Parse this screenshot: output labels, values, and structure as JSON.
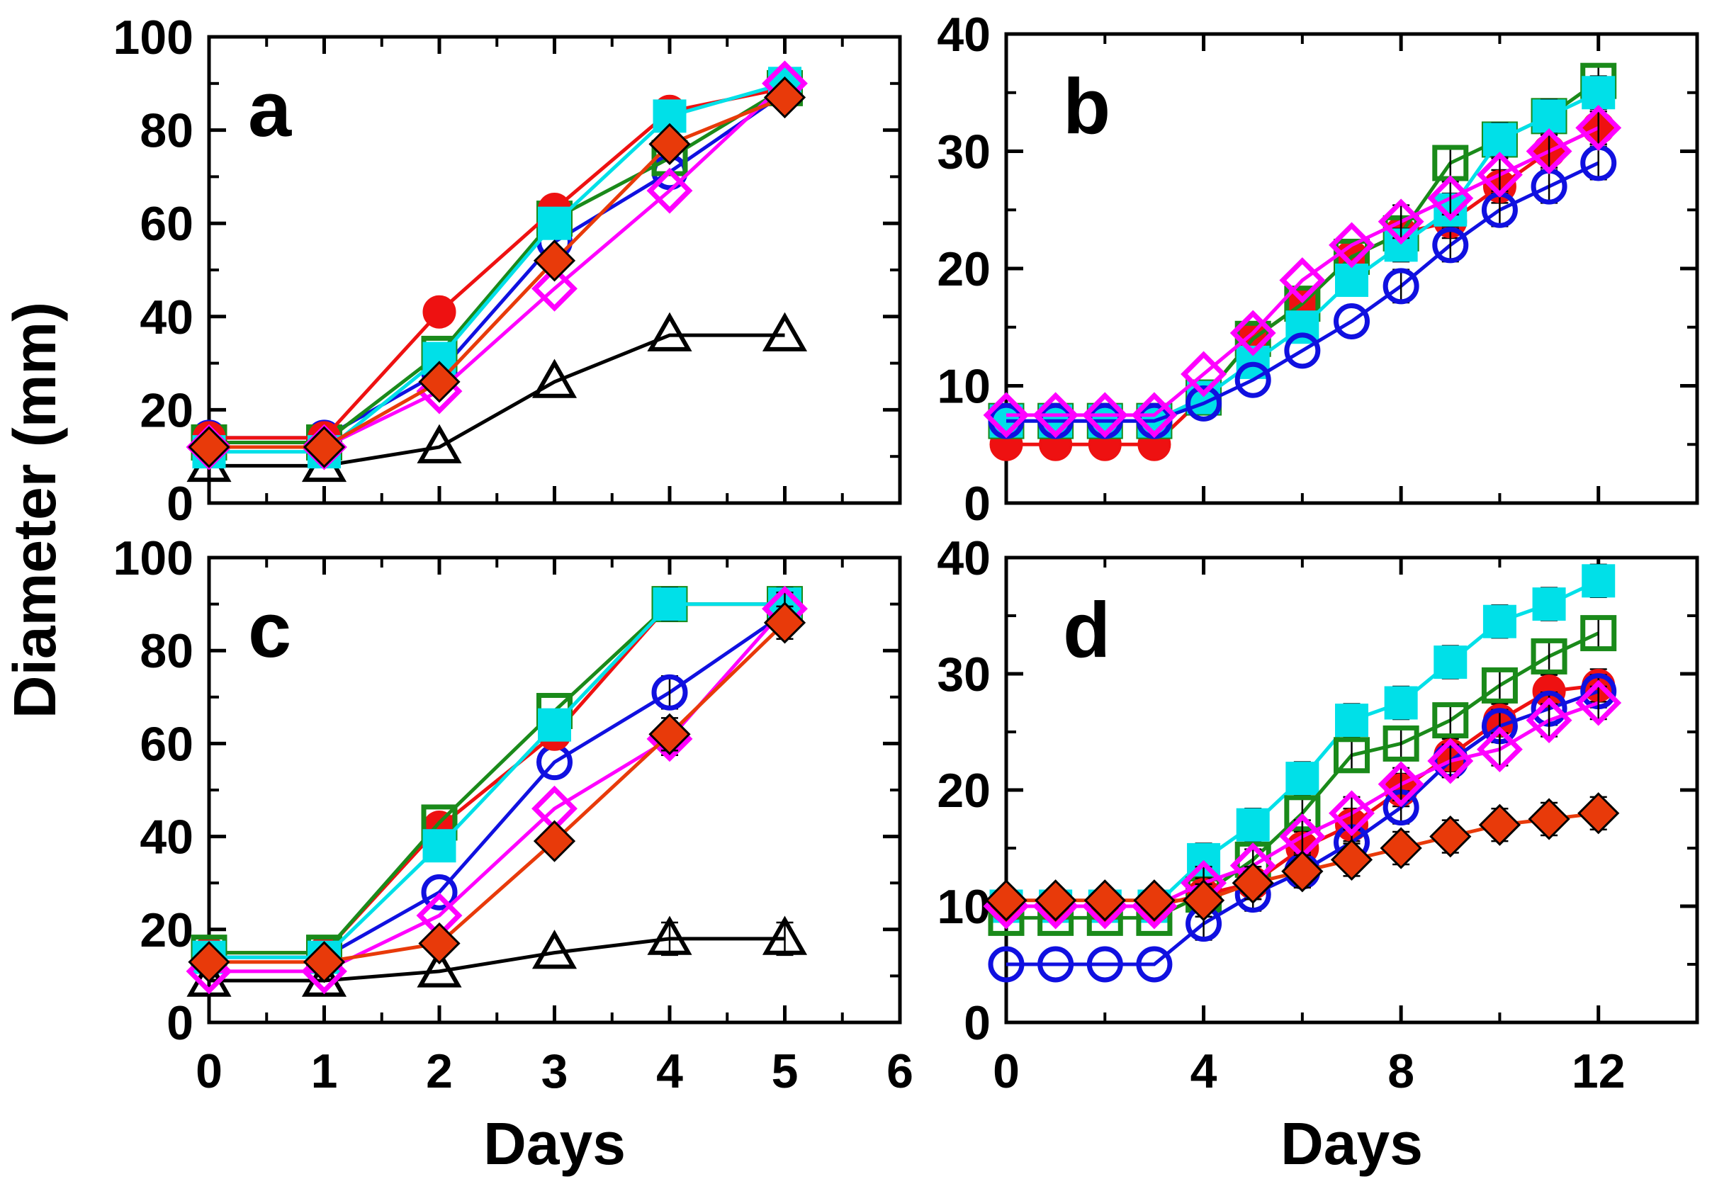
{
  "figure": {
    "ylabel": "Diameter (mm)",
    "xlabel": "Days"
  },
  "colors": {
    "blue": "#1010e0",
    "red": "#ee1111",
    "green": "#1a8a1a",
    "cyan": "#00e0e8",
    "magenta": "#ff00ff",
    "orange": "#e83a0a",
    "black": "#000000"
  },
  "chart_data": [
    {
      "id": "a",
      "type": "line",
      "panel_label": "a",
      "xlim": [
        0,
        6
      ],
      "ylim": [
        0,
        100
      ],
      "xticks": [
        "0",
        "1",
        "2",
        "3",
        "4",
        "5",
        "6"
      ],
      "yticks": [
        "0",
        "20",
        "40",
        "60",
        "80",
        "100"
      ],
      "show_xticks": false,
      "xlabel": "",
      "ylabel": "Diameter (mm)",
      "series": [
        {
          "name": "black-triangle",
          "color": "#000000",
          "marker": "triangle-open",
          "x": [
            0,
            1,
            2,
            3,
            4,
            5
          ],
          "y": [
            8,
            8,
            12,
            26,
            36,
            36
          ]
        },
        {
          "name": "blue-circle",
          "color": "#1010e0",
          "marker": "circle-open",
          "x": [
            0,
            1,
            2,
            3,
            4,
            5
          ],
          "y": [
            14,
            14,
            28,
            56,
            71,
            88
          ]
        },
        {
          "name": "green-square",
          "color": "#1a8a1a",
          "marker": "square-open",
          "x": [
            0,
            1,
            2,
            3,
            4,
            5
          ],
          "y": [
            13,
            13,
            32,
            61,
            74,
            89
          ]
        },
        {
          "name": "red-circle",
          "color": "#ee1111",
          "marker": "circle-filled",
          "x": [
            0,
            1,
            2,
            3,
            4,
            5
          ],
          "y": [
            14,
            14,
            41,
            63,
            84,
            89
          ]
        },
        {
          "name": "cyan-square",
          "color": "#00e0e8",
          "marker": "square-filled",
          "x": [
            0,
            1,
            2,
            3,
            4,
            5
          ],
          "y": [
            11,
            11,
            31,
            60,
            83,
            90
          ]
        },
        {
          "name": "magenta-diamond",
          "color": "#ff00ff",
          "marker": "diamond-open",
          "x": [
            0,
            1,
            2,
            3,
            4,
            5
          ],
          "y": [
            12,
            12,
            24,
            46,
            67,
            90
          ]
        },
        {
          "name": "orange-diamond",
          "color": "#e83a0a",
          "marker": "diamond-filled",
          "x": [
            0,
            1,
            2,
            3,
            4,
            5
          ],
          "y": [
            12,
            12,
            26,
            52,
            77,
            87
          ]
        }
      ]
    },
    {
      "id": "b",
      "type": "line",
      "panel_label": "b",
      "xlim": [
        0,
        14
      ],
      "ylim": [
        0,
        40
      ],
      "xticks": [
        "0",
        "4",
        "8",
        "12"
      ],
      "yticks": [
        "0",
        "10",
        "20",
        "30",
        "40"
      ],
      "show_xticks": false,
      "xlabel": "",
      "ylabel": "",
      "series": [
        {
          "name": "red-circle",
          "color": "#ee1111",
          "marker": "circle-filled",
          "x": [
            0,
            1,
            2,
            3,
            4,
            5,
            6,
            7,
            8,
            9,
            10,
            11,
            12
          ],
          "y": [
            5,
            5,
            5,
            5,
            9,
            14,
            17,
            21,
            23,
            24,
            27,
            30,
            32
          ]
        },
        {
          "name": "green-square",
          "color": "#1a8a1a",
          "marker": "square-open",
          "x": [
            0,
            1,
            2,
            3,
            4,
            5,
            6,
            7,
            8,
            9,
            10,
            11,
            12
          ],
          "y": [
            7,
            7,
            7,
            7,
            9,
            14,
            17,
            21,
            23,
            29,
            31,
            33,
            36
          ]
        },
        {
          "name": "cyan-square",
          "color": "#00e0e8",
          "marker": "square-filled",
          "x": [
            0,
            1,
            2,
            3,
            4,
            5,
            6,
            7,
            8,
            9,
            10,
            11,
            12
          ],
          "y": [
            7,
            7,
            7,
            7,
            9,
            12,
            15,
            19,
            22,
            25,
            31,
            33,
            35
          ]
        },
        {
          "name": "blue-circle",
          "color": "#1010e0",
          "marker": "circle-open",
          "x": [
            0,
            1,
            2,
            3,
            4,
            5,
            6,
            7,
            8,
            9,
            10,
            11,
            12
          ],
          "y": [
            7,
            7,
            7,
            7,
            8.5,
            10.5,
            13,
            15.5,
            18.5,
            22,
            25,
            27,
            29
          ]
        },
        {
          "name": "magenta-diamond",
          "color": "#ff00ff",
          "marker": "diamond-open",
          "x": [
            0,
            1,
            2,
            3,
            4,
            5,
            6,
            7,
            8,
            9,
            10,
            11,
            12
          ],
          "y": [
            7.5,
            7.5,
            7.5,
            7.5,
            11,
            14.5,
            19,
            22,
            24,
            26,
            28,
            30,
            32
          ]
        }
      ]
    },
    {
      "id": "c",
      "type": "line",
      "panel_label": "c",
      "xlim": [
        0,
        6
      ],
      "ylim": [
        0,
        100
      ],
      "xticks": [
        "0",
        "1",
        "2",
        "3",
        "4",
        "5",
        "6"
      ],
      "yticks": [
        "0",
        "20",
        "40",
        "60",
        "80",
        "100"
      ],
      "show_xticks": true,
      "xlabel": "Days",
      "ylabel": "",
      "series": [
        {
          "name": "black-triangle",
          "color": "#000000",
          "marker": "triangle-open",
          "x": [
            0,
            1,
            2,
            3,
            4,
            5
          ],
          "y": [
            9,
            9,
            11,
            15,
            18,
            18
          ]
        },
        {
          "name": "blue-circle",
          "color": "#1010e0",
          "marker": "circle-open",
          "x": [
            0,
            1,
            2,
            3,
            4,
            5
          ],
          "y": [
            14,
            14,
            28,
            56,
            71,
            88
          ]
        },
        {
          "name": "red-circle",
          "color": "#ee1111",
          "marker": "circle-filled",
          "x": [
            0,
            1,
            2,
            3,
            4,
            5
          ],
          "y": [
            15,
            15,
            42,
            62,
            90,
            90
          ]
        },
        {
          "name": "green-square",
          "color": "#1a8a1a",
          "marker": "square-open",
          "x": [
            0,
            1,
            2,
            3,
            4,
            5
          ],
          "y": [
            15,
            15,
            43,
            67,
            90,
            90
          ]
        },
        {
          "name": "cyan-square",
          "color": "#00e0e8",
          "marker": "square-filled",
          "x": [
            0,
            1,
            2,
            3,
            4,
            5
          ],
          "y": [
            14,
            14,
            38,
            64,
            90,
            90
          ]
        },
        {
          "name": "magenta-diamond",
          "color": "#ff00ff",
          "marker": "diamond-open",
          "x": [
            0,
            1,
            2,
            3,
            4,
            5
          ],
          "y": [
            11,
            11,
            23,
            46,
            61,
            89
          ]
        },
        {
          "name": "orange-diamond",
          "color": "#e83a0a",
          "marker": "diamond-filled",
          "x": [
            0,
            1,
            2,
            3,
            4,
            5
          ],
          "y": [
            13,
            13,
            17,
            39,
            62,
            86
          ]
        }
      ]
    },
    {
      "id": "d",
      "type": "line",
      "panel_label": "d",
      "xlim": [
        0,
        14
      ],
      "ylim": [
        0,
        40
      ],
      "xticks": [
        "0",
        "4",
        "8",
        "12"
      ],
      "yticks": [
        "0",
        "10",
        "20",
        "30",
        "40"
      ],
      "show_xticks": true,
      "xlabel": "Days",
      "ylabel": "",
      "series": [
        {
          "name": "cyan-square",
          "color": "#00e0e8",
          "marker": "square-filled",
          "x": [
            0,
            1,
            2,
            3,
            4,
            5,
            6,
            7,
            8,
            9,
            10,
            11,
            12
          ],
          "y": [
            10,
            10,
            10,
            10,
            14,
            17,
            21,
            26,
            27.5,
            31,
            34.5,
            36,
            38
          ]
        },
        {
          "name": "green-square",
          "color": "#1a8a1a",
          "marker": "square-open",
          "x": [
            0,
            1,
            2,
            3,
            4,
            5,
            6,
            7,
            8,
            9,
            10,
            11,
            12
          ],
          "y": [
            9,
            9,
            9,
            9,
            11,
            14,
            18,
            23,
            24,
            26,
            29,
            31.5,
            33.5
          ]
        },
        {
          "name": "red-circle",
          "color": "#ee1111",
          "marker": "circle-filled",
          "x": [
            0,
            1,
            2,
            3,
            4,
            5,
            6,
            7,
            8,
            9,
            10,
            11,
            12
          ],
          "y": [
            10,
            10,
            10,
            10,
            11,
            12,
            15,
            17,
            20,
            23,
            26,
            28.5,
            29
          ]
        },
        {
          "name": "blue-circle",
          "color": "#1010e0",
          "marker": "circle-open",
          "x": [
            0,
            1,
            2,
            3,
            4,
            5,
            6,
            7,
            8,
            9,
            10,
            11,
            12
          ],
          "y": [
            5,
            5,
            5,
            5,
            8.5,
            11,
            13,
            15.5,
            18.5,
            22.5,
            25.5,
            27,
            28.5
          ]
        },
        {
          "name": "magenta-diamond",
          "color": "#ff00ff",
          "marker": "diamond-open",
          "x": [
            0,
            1,
            2,
            3,
            4,
            5,
            6,
            7,
            8,
            9,
            10,
            11,
            12
          ],
          "y": [
            10,
            10,
            10,
            10,
            12,
            13.5,
            16,
            18,
            20.5,
            22.5,
            23.5,
            26,
            27.5
          ]
        },
        {
          "name": "orange-diamond",
          "color": "#e83a0a",
          "marker": "diamond-filled",
          "x": [
            0,
            1,
            2,
            3,
            4,
            5,
            6,
            7,
            8,
            9,
            10,
            11,
            12
          ],
          "y": [
            10.5,
            10.5,
            10.5,
            10.5,
            10.5,
            12,
            13,
            14,
            15,
            16,
            17,
            17.5,
            18
          ]
        }
      ]
    }
  ]
}
